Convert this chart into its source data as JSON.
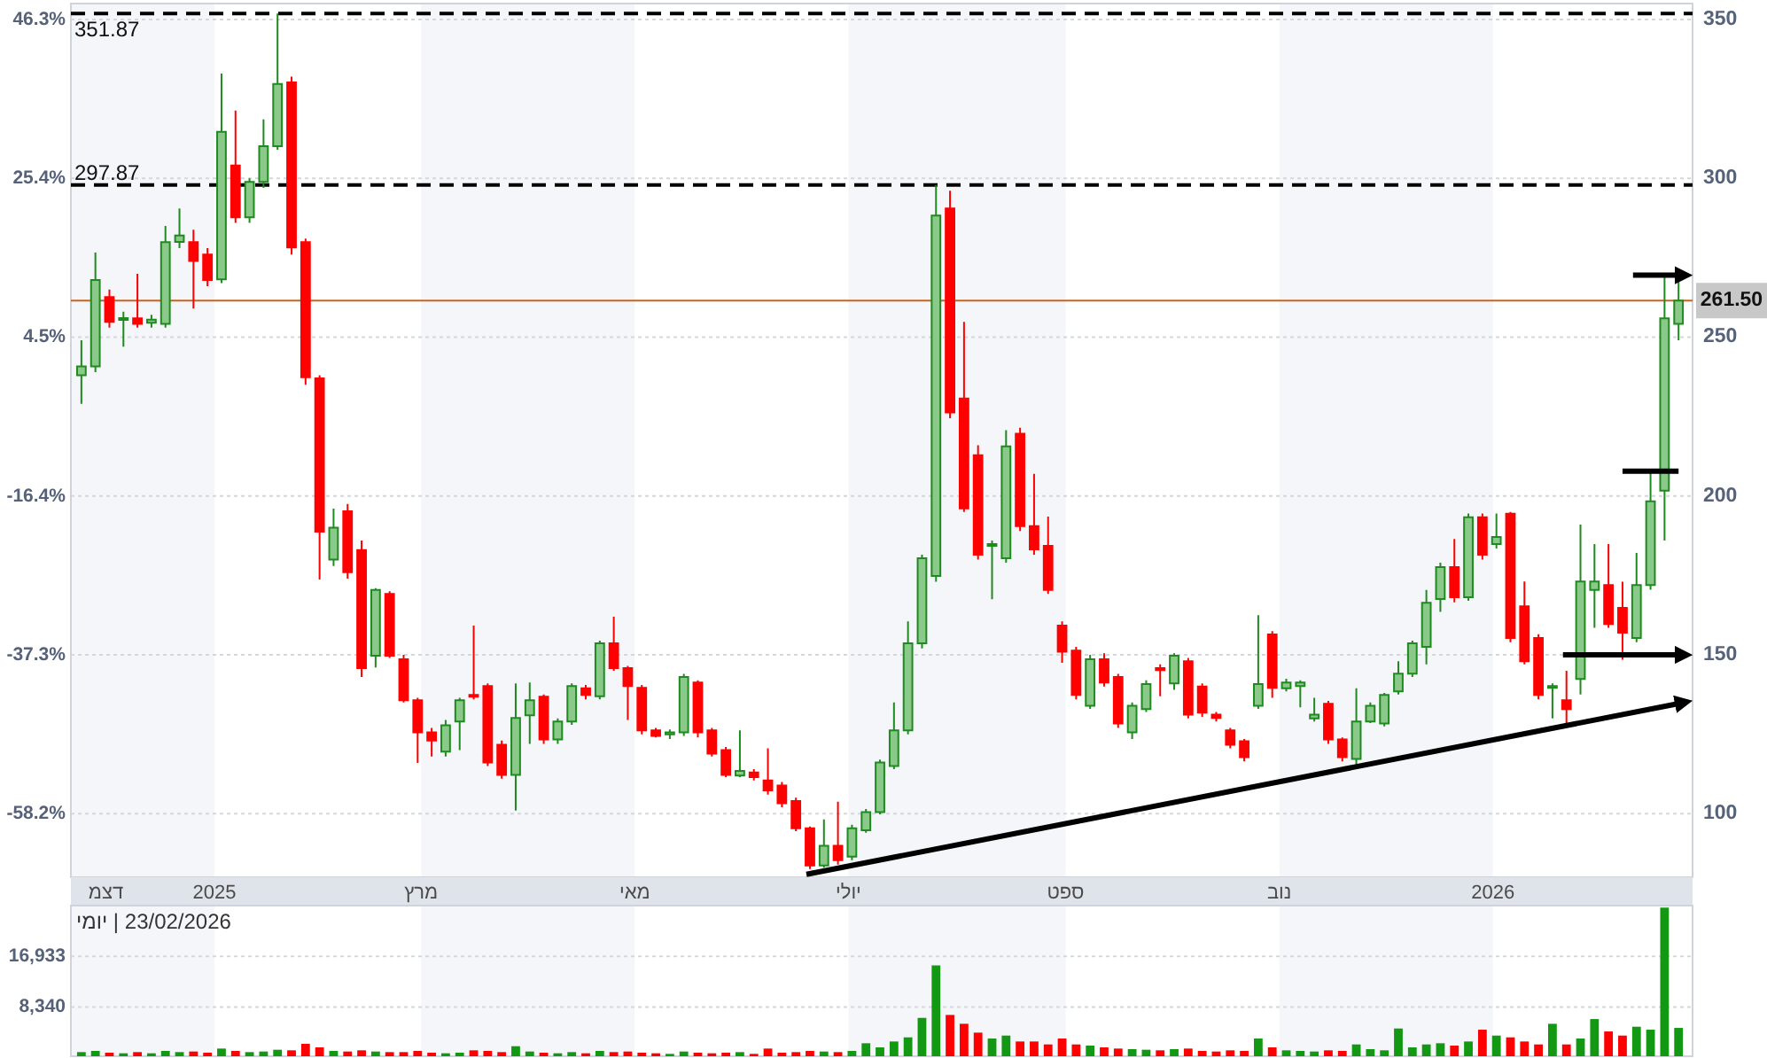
{
  "chart_data": [
    {
      "type": "candlestick",
      "x": [
        "2024-11-24",
        "2024-11-28",
        "2024-12-02",
        "2024-12-06",
        "2024-12-10",
        "2024-12-14",
        "2024-12-18",
        "2024-12-22",
        "2024-12-26",
        "2024-12-30",
        "2025-01-03",
        "2025-01-07",
        "2025-01-11",
        "2025-01-15",
        "2025-01-19",
        "2025-01-23",
        "2025-01-27",
        "2025-01-31",
        "2025-02-04",
        "2025-02-08",
        "2025-02-12",
        "2025-02-16",
        "2025-02-20",
        "2025-02-24",
        "2025-02-28",
        "2025-03-04",
        "2025-03-08",
        "2025-03-12",
        "2025-03-16",
        "2025-03-20",
        "2025-03-24",
        "2025-03-28",
        "2025-04-01",
        "2025-04-05",
        "2025-04-09",
        "2025-04-13",
        "2025-04-17",
        "2025-04-21",
        "2025-04-25",
        "2025-04-29",
        "2025-05-03",
        "2025-05-07",
        "2025-05-11",
        "2025-05-15",
        "2025-05-19",
        "2025-05-23",
        "2025-05-27",
        "2025-05-31",
        "2025-06-04",
        "2025-06-08",
        "2025-06-12",
        "2025-06-16",
        "2025-06-20",
        "2025-06-24",
        "2025-06-28",
        "2025-07-02",
        "2025-07-06",
        "2025-07-10",
        "2025-07-14",
        "2025-07-18",
        "2025-07-22",
        "2025-07-26",
        "2025-07-30",
        "2025-08-03",
        "2025-08-07",
        "2025-08-11",
        "2025-08-15",
        "2025-08-19",
        "2025-08-23",
        "2025-08-27",
        "2025-08-31",
        "2025-09-04",
        "2025-09-08",
        "2025-09-12",
        "2025-09-16",
        "2025-09-20",
        "2025-09-24",
        "2025-09-28",
        "2025-10-02",
        "2025-10-06",
        "2025-10-10",
        "2025-10-14",
        "2025-10-18",
        "2025-10-22",
        "2025-10-26",
        "2025-10-30",
        "2025-11-03",
        "2025-11-07",
        "2025-11-11",
        "2025-11-15",
        "2025-11-19",
        "2025-11-23",
        "2025-11-27",
        "2025-12-01",
        "2025-12-05",
        "2025-12-09",
        "2025-12-13",
        "2025-12-17",
        "2025-12-21",
        "2025-12-25",
        "2025-12-29",
        "2026-01-02",
        "2026-01-06",
        "2026-01-10",
        "2026-01-14",
        "2026-01-18",
        "2026-01-22",
        "2026-01-26",
        "2026-01-30",
        "2026-02-03",
        "2026-02-07",
        "2026-02-11",
        "2026-02-15",
        "2026-02-19",
        "2026-02-23"
      ],
      "ohlc": [
        [
          238,
          249,
          229,
          240.8
        ],
        [
          240.8,
          276.6,
          239,
          268
        ],
        [
          262.6,
          265,
          253,
          254.8
        ],
        [
          255.9,
          258,
          247,
          256
        ],
        [
          255.9,
          269.9,
          253,
          254.2
        ],
        [
          254.5,
          257,
          253,
          255.5
        ],
        [
          254.2,
          285,
          253,
          279.9
        ],
        [
          280,
          290.5,
          278,
          282
        ],
        [
          279.9,
          283.8,
          259,
          274
        ],
        [
          276,
          278,
          266,
          268
        ],
        [
          268.2,
          333,
          267,
          314.6
        ],
        [
          304,
          321.3,
          286,
          287.7
        ],
        [
          287.7,
          300,
          286,
          298.9
        ],
        [
          298.9,
          318.5,
          297,
          310.1
        ],
        [
          310.1,
          351.87,
          309,
          329.7
        ],
        [
          330.2,
          332,
          276,
          278.2
        ],
        [
          279.9,
          281,
          235,
          237.4
        ],
        [
          237,
          238,
          173.7,
          188.8
        ],
        [
          180,
          196,
          178,
          190
        ],
        [
          195.2,
          197.5,
          174,
          176
        ],
        [
          183,
          186,
          143,
          145.8
        ],
        [
          149.7,
          171,
          146,
          170.4
        ],
        [
          169.2,
          170,
          149,
          149.7
        ],
        [
          148.6,
          150,
          135,
          135.7
        ],
        [
          135.7,
          136.5,
          116,
          125.6
        ],
        [
          125.6,
          127,
          118,
          123
        ],
        [
          119.5,
          129.5,
          118,
          127.8
        ],
        [
          129,
          136.5,
          120,
          135.7
        ],
        [
          137.4,
          159.2,
          136,
          137
        ],
        [
          140.2,
          141,
          115,
          116.1
        ],
        [
          121.7,
          123,
          111,
          112.2
        ],
        [
          112.2,
          141,
          101,
          130.1
        ],
        [
          131,
          141.3,
          122,
          135.7
        ],
        [
          136.8,
          137.5,
          122,
          123.4
        ],
        [
          123.4,
          130,
          122,
          129
        ],
        [
          129,
          141,
          128,
          140.2
        ],
        [
          139.5,
          140.5,
          136,
          137.4
        ],
        [
          137,
          154.5,
          136,
          153.6
        ],
        [
          153.6,
          162,
          145,
          145.8
        ],
        [
          145.8,
          146.5,
          129.5,
          140.2
        ],
        [
          139.6,
          140.5,
          125,
          126.2
        ],
        [
          126.2,
          127,
          124,
          124.5
        ],
        [
          125,
          126.5,
          123.5,
          125.6
        ],
        [
          125.6,
          144,
          124.5,
          143
        ],
        [
          141.3,
          142,
          124,
          125.6
        ],
        [
          126.2,
          127,
          118,
          118.9
        ],
        [
          120,
          121,
          111.5,
          112.2
        ],
        [
          112,
          126.2,
          111.5,
          113.5
        ],
        [
          113,
          114,
          110.5,
          111.5
        ],
        [
          110.5,
          120.6,
          106,
          107.3
        ],
        [
          108.9,
          110,
          102,
          103.3
        ],
        [
          104,
          105,
          94.5,
          95.4
        ],
        [
          95.4,
          96,
          82.6,
          83.7
        ],
        [
          83.7,
          98.2,
          83,
          89.9
        ],
        [
          89.9,
          103.8,
          84,
          85.4
        ],
        [
          86.5,
          96.5,
          85.4,
          95.4
        ],
        [
          94.8,
          101.5,
          94,
          100.5
        ],
        [
          100.5,
          117,
          99.8,
          116.1
        ],
        [
          115,
          135,
          114,
          126.2
        ],
        [
          126.2,
          160.5,
          125,
          153.6
        ],
        [
          153.6,
          181.5,
          152,
          180.4
        ],
        [
          174.8,
          297.87,
          173,
          288.3
        ],
        [
          290.5,
          296.1,
          224.5,
          226.3
        ],
        [
          230.7,
          254.8,
          195,
          196.1
        ],
        [
          212.8,
          216,
          180,
          181.5
        ],
        [
          184.3,
          186,
          167.5,
          184.9
        ],
        [
          180.4,
          220.7,
          179,
          215.6
        ],
        [
          219.6,
          221.5,
          189,
          190.5
        ],
        [
          190.5,
          207,
          181.5,
          183.2
        ],
        [
          184.3,
          193.5,
          169.2,
          170.4
        ],
        [
          159.2,
          160.5,
          147.5,
          151
        ],
        [
          151.3,
          152.5,
          136,
          137.4
        ],
        [
          134,
          150,
          133,
          148.6
        ],
        [
          148.6,
          150.5,
          140,
          141.3
        ],
        [
          143,
          144,
          127,
          128.4
        ],
        [
          125.6,
          135,
          123.5,
          134
        ],
        [
          132.9,
          142,
          132,
          140.8
        ],
        [
          145.8,
          147,
          137,
          145.2
        ],
        [
          141,
          150.5,
          139,
          149.7
        ],
        [
          148,
          149,
          130,
          131.2
        ],
        [
          140,
          141,
          130.5,
          131.8
        ],
        [
          131.2,
          132,
          129,
          130.1
        ],
        [
          126.2,
          127,
          120.6,
          121.7
        ],
        [
          122.8,
          123.5,
          116.5,
          117.8
        ],
        [
          134,
          162.5,
          133,
          140.8
        ],
        [
          156.4,
          157.5,
          136.5,
          139.6
        ],
        [
          139.5,
          142.5,
          138.5,
          141.3
        ],
        [
          140.2,
          142,
          133.5,
          141.3
        ],
        [
          130,
          136.5,
          129,
          131.2
        ],
        [
          134.6,
          135.5,
          122,
          123.4
        ],
        [
          123.4,
          124,
          116.5,
          117.8
        ],
        [
          117.2,
          139.5,
          114,
          129
        ],
        [
          129,
          135,
          128.5,
          134
        ],
        [
          128.4,
          138,
          127.5,
          137.4
        ],
        [
          138.5,
          148,
          137.5,
          144.1
        ],
        [
          144.1,
          154.5,
          143,
          153.6
        ],
        [
          152.5,
          170.4,
          147,
          166.4
        ],
        [
          167.6,
          179,
          163.5,
          177.6
        ],
        [
          177.6,
          186.5,
          166.5,
          168.1
        ],
        [
          168.1,
          194.5,
          167,
          193.3
        ],
        [
          193.3,
          194.5,
          180,
          181.5
        ],
        [
          184.9,
          194.5,
          183.5,
          187.1
        ],
        [
          194.4,
          195,
          154,
          155.3
        ],
        [
          165.3,
          173.1,
          147,
          148
        ],
        [
          155.3,
          156.5,
          136,
          137.4
        ],
        [
          139.6,
          141,
          130,
          140.2
        ],
        [
          135.7,
          145,
          128.4,
          132.9
        ],
        [
          142.4,
          191,
          137.5,
          173.1
        ],
        [
          170.4,
          184.9,
          158.5,
          173.1
        ],
        [
          172,
          184.9,
          158.5,
          159.7
        ],
        [
          164.8,
          173,
          148.5,
          157
        ],
        [
          155.3,
          182.1,
          154,
          172
        ],
        [
          172,
          207.3,
          170.5,
          198.3
        ],
        [
          201.7,
          268.9,
          186,
          255.9
        ],
        [
          254.2,
          268.2,
          249,
          261.5
        ]
      ],
      "series": [
        {
          "type": "line",
          "color": "#000000",
          "x": [
            "2025-06-19",
            "2026-02-25"
          ],
          "values": [
            80.9,
            135.1
          ]
        },
        {
          "type": "line",
          "color": "#000000",
          "x": [
            "2026-01-21",
            "2026-02-25"
          ],
          "values": [
            150,
            150
          ]
        },
        {
          "type": "line",
          "color": "#000000",
          "x": [
            "2026-02-07",
            "2026-02-23"
          ],
          "values": [
            207.8,
            207.8
          ]
        },
        {
          "type": "line",
          "color": "#000000",
          "x": [
            "2026-02-10",
            "2026-02-25"
          ],
          "values": [
            269.5,
            269.5
          ]
        }
      ],
      "xlim": [
        "2024-11-21",
        "2026-02-27"
      ],
      "xticks": [
        {
          "value": "2024-12-01",
          "label": "דצמ"
        },
        {
          "value": "2025-01-01",
          "label": "2025"
        },
        {
          "value": "2025-03-01",
          "label": "מרץ"
        },
        {
          "value": "2025-05-01",
          "label": "מאי"
        },
        {
          "value": "2025-07-01",
          "label": "יולי"
        },
        {
          "value": "2025-09-01",
          "label": "ספט"
        },
        {
          "value": "2025-11-01",
          "label": "נוב"
        },
        {
          "value": "2026-01-01",
          "label": "2026"
        }
      ],
      "ylim": [
        80,
        355
      ],
      "yticks": [
        100,
        150,
        200,
        250,
        300,
        350
      ],
      "y2lim": [
        -66.6,
        48.4
      ],
      "y2ticks": [
        {
          "value": -58.2,
          "label": "-58.2%"
        },
        {
          "value": -37.3,
          "label": "-37.3%"
        },
        {
          "value": -16.4,
          "label": "-16.4%"
        },
        {
          "value": 4.5,
          "label": "4.5%"
        },
        {
          "value": 25.4,
          "label": "25.4%"
        },
        {
          "value": 46.3,
          "label": "46.3%"
        }
      ],
      "ref_lines": [
        {
          "axis": "y",
          "value": 351.87,
          "label": "351.87",
          "color": "#000000",
          "line_style": "dashed"
        },
        {
          "axis": "y",
          "value": 297.87,
          "label": "297.87",
          "color": "#000000",
          "line_style": "dashed"
        },
        {
          "axis": "y",
          "value": 261.5,
          "label": "261.50",
          "color": "#c8641e",
          "line_style": "solid"
        }
      ],
      "bands": [
        {
          "axis": "x",
          "from": "2024-11-21",
          "to": "2025-01-01",
          "color": "#f4f6f9"
        },
        {
          "axis": "x",
          "from": "2025-03-01",
          "to": "2025-05-01",
          "color": "#f4f6f9"
        },
        {
          "axis": "x",
          "from": "2025-07-01",
          "to": "2025-09-01",
          "color": "#f4f6f9"
        },
        {
          "axis": "x",
          "from": "2025-11-01",
          "to": "2026-01-01",
          "color": "#f4f6f9"
        }
      ],
      "grid": "y"
    },
    {
      "type": "bar",
      "x": [
        "2024-11-24",
        "2024-11-28",
        "2024-12-02",
        "2024-12-06",
        "2024-12-10",
        "2024-12-14",
        "2024-12-18",
        "2024-12-22",
        "2024-12-26",
        "2024-12-30",
        "2025-01-03",
        "2025-01-07",
        "2025-01-11",
        "2025-01-15",
        "2025-01-19",
        "2025-01-23",
        "2025-01-27",
        "2025-01-31",
        "2025-02-04",
        "2025-02-08",
        "2025-02-12",
        "2025-02-16",
        "2025-02-20",
        "2025-02-24",
        "2025-02-28",
        "2025-03-04",
        "2025-03-08",
        "2025-03-12",
        "2025-03-16",
        "2025-03-20",
        "2025-03-24",
        "2025-03-28",
        "2025-04-01",
        "2025-04-05",
        "2025-04-09",
        "2025-04-13",
        "2025-04-17",
        "2025-04-21",
        "2025-04-25",
        "2025-04-29",
        "2025-05-03",
        "2025-05-07",
        "2025-05-11",
        "2025-05-15",
        "2025-05-19",
        "2025-05-23",
        "2025-05-27",
        "2025-05-31",
        "2025-06-04",
        "2025-06-08",
        "2025-06-12",
        "2025-06-16",
        "2025-06-20",
        "2025-06-24",
        "2025-06-28",
        "2025-07-02",
        "2025-07-06",
        "2025-07-10",
        "2025-07-14",
        "2025-07-18",
        "2025-07-22",
        "2025-07-26",
        "2025-07-30",
        "2025-08-03",
        "2025-08-07",
        "2025-08-11",
        "2025-08-15",
        "2025-08-19",
        "2025-08-23",
        "2025-08-27",
        "2025-08-31",
        "2025-09-04",
        "2025-09-08",
        "2025-09-12",
        "2025-09-16",
        "2025-09-20",
        "2025-09-24",
        "2025-09-28",
        "2025-10-02",
        "2025-10-06",
        "2025-10-10",
        "2025-10-14",
        "2025-10-18",
        "2025-10-22",
        "2025-10-26",
        "2025-10-30",
        "2025-11-03",
        "2025-11-07",
        "2025-11-11",
        "2025-11-15",
        "2025-11-19",
        "2025-11-23",
        "2025-11-27",
        "2025-12-01",
        "2025-12-05",
        "2025-12-09",
        "2025-12-13",
        "2025-12-17",
        "2025-12-21",
        "2025-12-25",
        "2025-12-29",
        "2026-01-02",
        "2026-01-06",
        "2026-01-10",
        "2026-01-14",
        "2026-01-18",
        "2026-01-22",
        "2026-01-26",
        "2026-01-30",
        "2026-02-03",
        "2026-02-07",
        "2026-02-11",
        "2026-02-15",
        "2026-02-19",
        "2026-02-23"
      ],
      "values": [
        700,
        900,
        600,
        500,
        700,
        500,
        900,
        700,
        800,
        600,
        1300,
        900,
        700,
        800,
        1100,
        1000,
        2100,
        1500,
        900,
        800,
        1000,
        800,
        700,
        700,
        900,
        600,
        500,
        600,
        1000,
        900,
        700,
        1700,
        800,
        600,
        500,
        700,
        500,
        900,
        700,
        800,
        600,
        500,
        400,
        800,
        600,
        500,
        600,
        700,
        400,
        1300,
        600,
        700,
        900,
        800,
        700,
        900,
        2200,
        1500,
        2500,
        3200,
        6500,
        15400,
        7000,
        5500,
        4000,
        3000,
        3500,
        2500,
        2500,
        2000,
        3000,
        2000,
        1800,
        1500,
        1300,
        1200,
        1100,
        1000,
        1200,
        1300,
        900,
        800,
        1000,
        900,
        3000,
        1500,
        1000,
        900,
        800,
        1000,
        900,
        2000,
        1200,
        1000,
        4700,
        1500,
        2000,
        2200,
        1800,
        2500,
        4500,
        3500,
        3200,
        2500,
        2000,
        5500,
        2000,
        3000,
        6300,
        4200,
        3500,
        5000,
        4500,
        25200,
        4800
      ],
      "colors": [
        "#129812",
        "#129812",
        "#ff0000",
        "#129812",
        "#ff0000",
        "#129812",
        "#129812",
        "#129812",
        "#ff0000",
        "#ff0000",
        "#129812",
        "#ff0000",
        "#129812",
        "#129812",
        "#129812",
        "#ff0000",
        "#ff0000",
        "#ff0000",
        "#129812",
        "#ff0000",
        "#ff0000",
        "#129812",
        "#ff0000",
        "#ff0000",
        "#ff0000",
        "#ff0000",
        "#129812",
        "#129812",
        "#ff0000",
        "#ff0000",
        "#ff0000",
        "#129812",
        "#129812",
        "#ff0000",
        "#129812",
        "#129812",
        "#ff0000",
        "#129812",
        "#ff0000",
        "#ff0000",
        "#ff0000",
        "#ff0000",
        "#129812",
        "#129812",
        "#ff0000",
        "#ff0000",
        "#ff0000",
        "#129812",
        "#ff0000",
        "#ff0000",
        "#ff0000",
        "#ff0000",
        "#ff0000",
        "#129812",
        "#ff0000",
        "#129812",
        "#129812",
        "#129812",
        "#129812",
        "#129812",
        "#129812",
        "#129812",
        "#ff0000",
        "#ff0000",
        "#ff0000",
        "#129812",
        "#129812",
        "#ff0000",
        "#ff0000",
        "#ff0000",
        "#ff0000",
        "#ff0000",
        "#129812",
        "#ff0000",
        "#ff0000",
        "#129812",
        "#129812",
        "#ff0000",
        "#129812",
        "#ff0000",
        "#ff0000",
        "#ff0000",
        "#ff0000",
        "#ff0000",
        "#129812",
        "#ff0000",
        "#129812",
        "#129812",
        "#129812",
        "#ff0000",
        "#ff0000",
        "#129812",
        "#129812",
        "#129812",
        "#129812",
        "#129812",
        "#129812",
        "#129812",
        "#ff0000",
        "#129812",
        "#ff0000",
        "#129812",
        "#ff0000",
        "#ff0000",
        "#ff0000",
        "#129812",
        "#ff0000",
        "#129812",
        "#129812",
        "#ff0000",
        "#ff0000",
        "#129812",
        "#129812",
        "#129812",
        "#129812"
      ],
      "xlim": [
        "2024-11-21",
        "2026-02-27"
      ],
      "ylim": [
        0,
        25540
      ],
      "yticks": [
        {
          "value": 8340,
          "label": "8,340"
        },
        {
          "value": 16933,
          "label": "16,933"
        }
      ],
      "tick_labels": "y",
      "bands": [
        {
          "axis": "x",
          "from": "2024-11-21",
          "to": "2025-01-01",
          "color": "#f4f6f9"
        },
        {
          "axis": "x",
          "from": "2025-03-01",
          "to": "2025-05-01",
          "color": "#f4f6f9"
        },
        {
          "axis": "x",
          "from": "2025-07-01",
          "to": "2025-09-01",
          "color": "#f4f6f9"
        },
        {
          "axis": "x",
          "from": "2025-11-01",
          "to": "2026-01-01",
          "color": "#f4f6f9"
        }
      ],
      "grid": "y",
      "annotations": [
        "23/02/2026 | יומי"
      ]
    }
  ]
}
